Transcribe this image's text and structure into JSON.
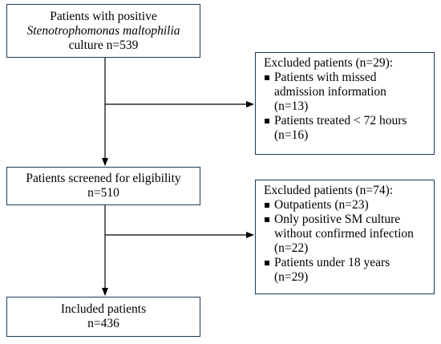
{
  "flow": {
    "start": {
      "line1": "Patients with positive",
      "line2": "Stenotrophomonas maltophilia",
      "line3": "culture n=539"
    },
    "exclusion1": {
      "title": "Excluded patients (n=29):",
      "items": [
        {
          "lines": [
            "Patients with missed",
            "admission information",
            "(n=13)"
          ]
        },
        {
          "lines": [
            "Patients treated < 72 hours",
            "(n=16)"
          ]
        }
      ]
    },
    "screened": {
      "line1": "Patients screened for eligibility",
      "line2": "n=510"
    },
    "exclusion2": {
      "title": "Excluded patients (n=74):",
      "items": [
        {
          "lines": [
            "Outpatients (n=23)"
          ]
        },
        {
          "lines": [
            "Only positive SM culture",
            "without confirmed infection",
            "(n=22)"
          ]
        },
        {
          "lines": [
            "Patients under 18 years",
            "(n=29)"
          ]
        }
      ]
    },
    "included": {
      "line1": "Included patients",
      "line2": "n=436"
    }
  },
  "colors": {
    "box_border": "#1f3a5a",
    "arrow": "#000000"
  }
}
